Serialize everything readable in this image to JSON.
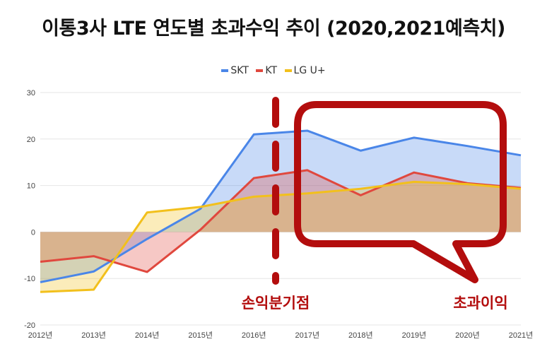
{
  "chart_data": {
    "type": "area",
    "title": "이통3사 LTE 연도별 초과수익 추이 (2020,2021예측치)",
    "categories": [
      "2012년",
      "2013년",
      "2014년",
      "2015년",
      "2016년",
      "2017년",
      "2018년",
      "2019년",
      "2020년",
      "2021년"
    ],
    "ylim": [
      -20,
      30
    ],
    "yticks": [
      30,
      20,
      10,
      0,
      -10,
      -20
    ],
    "grid": true,
    "legend_position": "top",
    "series": [
      {
        "name": "SKT",
        "color": "#4a86e8",
        "values": [
          -10.8,
          -8.5,
          -1.5,
          5.0,
          21.0,
          21.8,
          17.5,
          20.3,
          18.5,
          16.5
        ]
      },
      {
        "name": "KT",
        "color": "#e0483e",
        "values": [
          -6.4,
          -5.2,
          -8.6,
          0.5,
          11.6,
          13.3,
          7.9,
          12.8,
          10.5,
          9.5
        ]
      },
      {
        "name": "LG U+",
        "color": "#f2c01c",
        "values": [
          -12.9,
          -12.4,
          4.2,
          5.4,
          7.6,
          8.3,
          9.3,
          10.8,
          10.3,
          9.3
        ]
      }
    ],
    "annotations": {
      "breakeven_label": "손익분기점",
      "excess_label": "초과이익",
      "color": "#b30d0d"
    }
  }
}
